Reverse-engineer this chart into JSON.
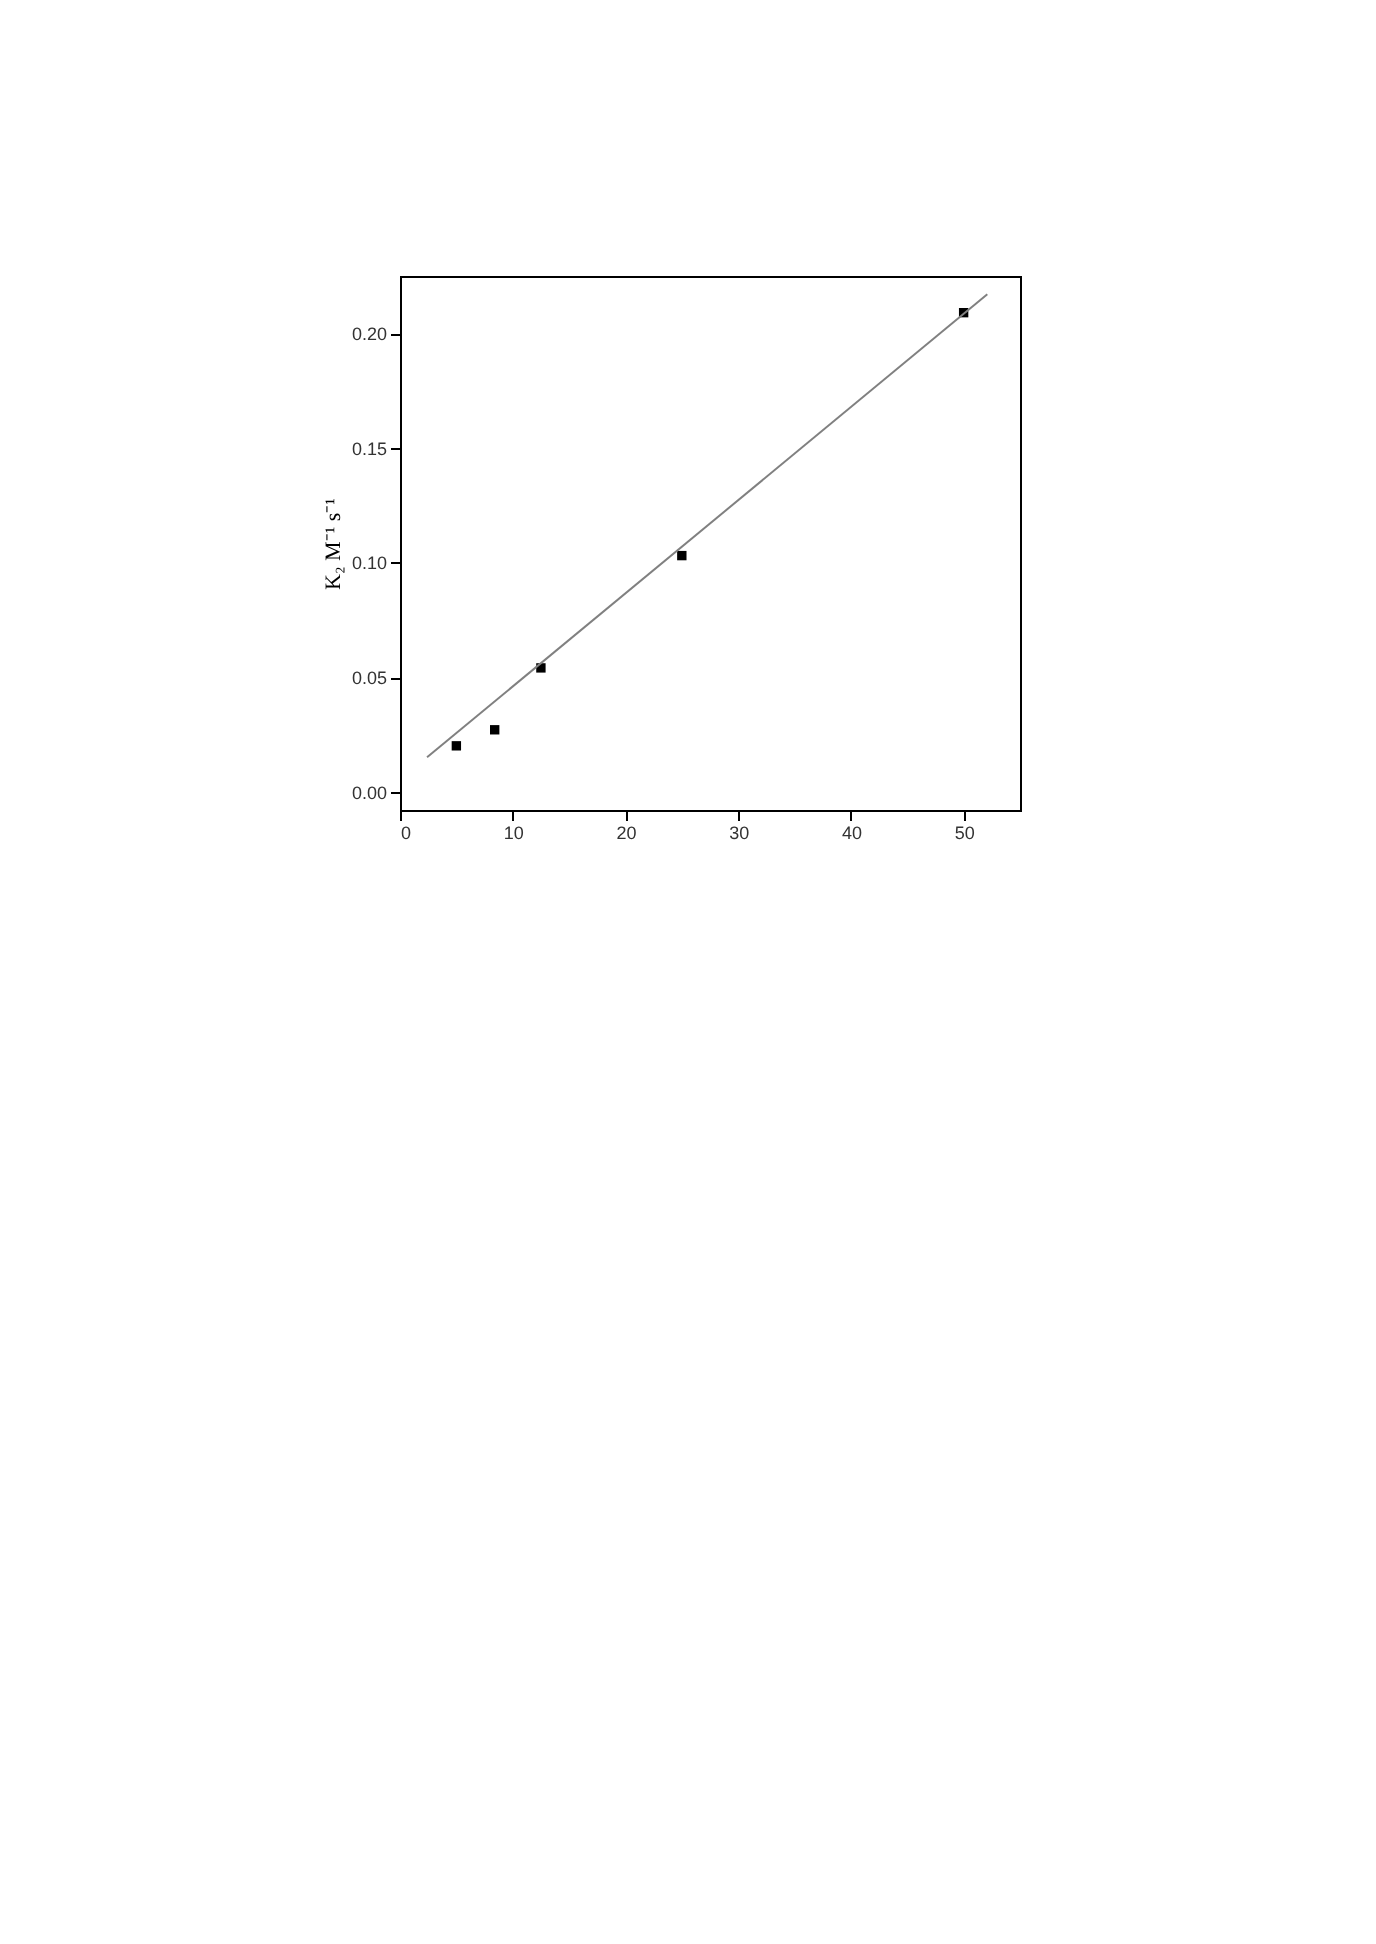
{
  "chart_data": {
    "type": "scatter",
    "ylabel": "K₂ M⁻¹ s⁻¹",
    "x": [
      5,
      8.4,
      12.5,
      25,
      50
    ],
    "series": [
      {
        "type": "scatter",
        "color": "#000000",
        "marker": "square",
        "values": [
          0.02,
          0.027,
          0.054,
          0.103,
          0.209
        ]
      },
      {
        "type": "line",
        "color": "#808080",
        "line_style": "solid",
        "x": [
          2.4,
          52.1
        ],
        "values": [
          0.015,
          0.217
        ]
      }
    ],
    "xlim": [
      0,
      55
    ],
    "ylim": [
      -0.008,
      0.225
    ],
    "xticks": [
      0,
      10,
      20,
      30,
      40,
      50
    ],
    "yticks": [
      {
        "value": 0,
        "label": "0.00"
      },
      {
        "value": 0.05,
        "label": "0.05"
      },
      {
        "value": 0.1,
        "label": "0.10"
      },
      {
        "value": 0.15,
        "label": "0.15"
      },
      {
        "value": 0.2,
        "label": "0.20"
      }
    ],
    "grid": false
  }
}
